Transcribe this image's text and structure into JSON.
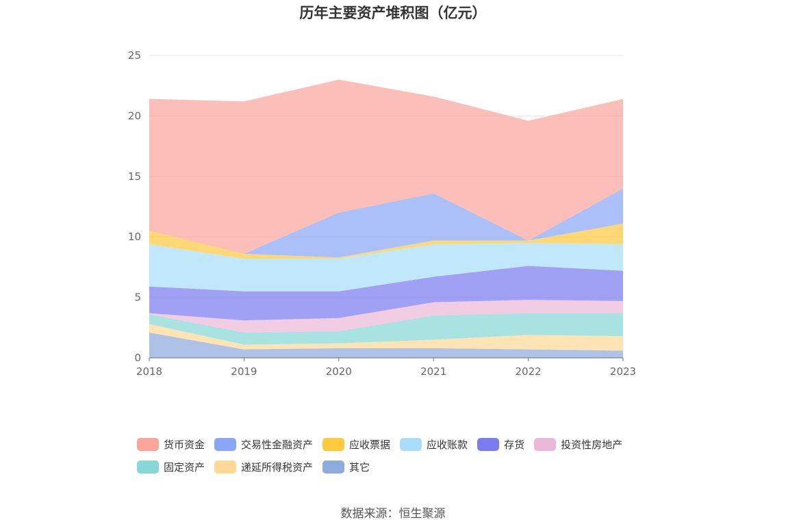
{
  "source": "数据来源：恒生聚源",
  "colors": {
    "货币资金": "#f9a59c",
    "交易性金融资产": "#8aa7f7",
    "应收票据": "#fcc93f",
    "应收账款": "#a9defa",
    "存货": "#7b7cf0",
    "投资性房地产": "#ebb8d8",
    "固定资产": "#87d7d6",
    "递延所得税资产": "#fdd897",
    "其它": "#8fabde"
  },
  "chart_data": {
    "type": "area",
    "stacked": true,
    "title": "历年主要资产堆积图（亿元）",
    "x": [
      "2018",
      "2019",
      "2020",
      "2021",
      "2022",
      "2023"
    ],
    "ylim": [
      0,
      25
    ],
    "yticks": [
      "0",
      "5",
      "10",
      "15",
      "20",
      "25"
    ],
    "grid": true,
    "legend_position": "bottom",
    "series": [
      {
        "name": "其它",
        "values": [
          2.1,
          0.7,
          0.8,
          0.8,
          0.7,
          0.6
        ]
      },
      {
        "name": "递延所得税资产",
        "values": [
          0.7,
          0.4,
          0.4,
          0.7,
          1.2,
          1.2
        ]
      },
      {
        "name": "固定资产",
        "values": [
          0.8,
          1.0,
          1.0,
          2.0,
          1.8,
          1.9
        ]
      },
      {
        "name": "投资性房地产",
        "values": [
          0.1,
          1.0,
          1.1,
          1.1,
          1.1,
          1.0
        ]
      },
      {
        "name": "存货",
        "values": [
          2.2,
          2.4,
          2.2,
          2.1,
          2.8,
          2.5
        ]
      },
      {
        "name": "应收账款",
        "values": [
          3.5,
          2.7,
          2.7,
          2.7,
          1.9,
          2.2
        ]
      },
      {
        "name": "应收票据",
        "values": [
          1.1,
          0.4,
          0.1,
          0.3,
          0.2,
          1.7
        ]
      },
      {
        "name": "交易性金融资产",
        "values": [
          0.0,
          0.0,
          3.7,
          3.9,
          0.0,
          2.9
        ]
      },
      {
        "name": "货币资金",
        "values": [
          10.9,
          12.6,
          11.0,
          8.0,
          9.9,
          7.4
        ]
      }
    ]
  },
  "legend": [
    {
      "name": "货币资金"
    },
    {
      "name": "交易性金融资产"
    },
    {
      "name": "应收票据"
    },
    {
      "name": "应收账款"
    },
    {
      "name": "存货"
    },
    {
      "name": "投资性房地产"
    },
    {
      "name": "固定资产"
    },
    {
      "name": "递延所得税资产"
    },
    {
      "name": "其它"
    }
  ]
}
